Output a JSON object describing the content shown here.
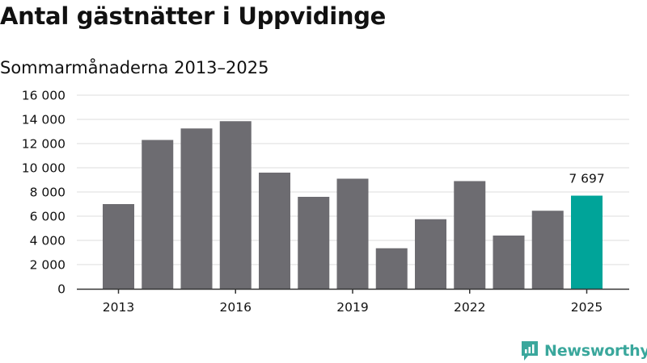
{
  "header": {
    "title": "Antal gästnätter i Uppvidinge",
    "subtitle": "Sommarmånaderna 2013–2025"
  },
  "brand": {
    "name": "Newsworthy",
    "icon": "newsworthy-logo-icon",
    "color": "#3aa79c"
  },
  "colors": {
    "bar_default": "#6d6c71",
    "bar_highlight": "#00a499",
    "grid": "#dddddd",
    "axis": "#333333"
  },
  "chart_data": {
    "type": "bar",
    "title": "",
    "xlabel": "",
    "ylabel": "",
    "categories": [
      "2013",
      "2014",
      "2015",
      "2016",
      "2017",
      "2018",
      "2019",
      "2020",
      "2021",
      "2022",
      "2023",
      "2024",
      "2025"
    ],
    "values": [
      7000,
      12300,
      13250,
      13850,
      9600,
      7600,
      9100,
      3350,
      5750,
      8900,
      4400,
      6450,
      7697
    ],
    "ylim": [
      0,
      16000
    ],
    "yticks": [
      "0",
      "2 000",
      "4 000",
      "6 000",
      "8 000",
      "10 000",
      "12 000",
      "14 000",
      "16 000"
    ],
    "xticks": [
      "2013",
      "2016",
      "2019",
      "2022",
      "2025"
    ],
    "highlight": {
      "category": "2025",
      "label": "7 697"
    },
    "grid": true,
    "legend": "none"
  }
}
